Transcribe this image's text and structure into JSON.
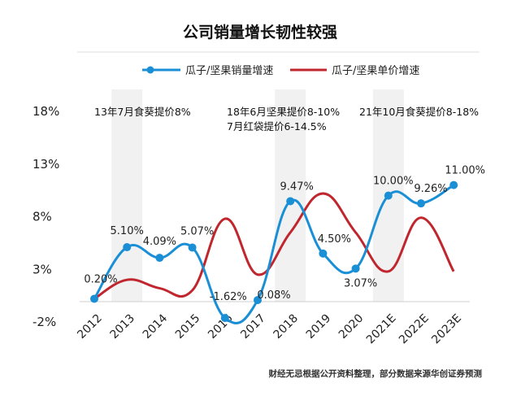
{
  "chart_data": {
    "type": "line",
    "title": "公司销量增长韧性较强",
    "categories": [
      "2012",
      "2013",
      "2014",
      "2015",
      "2016",
      "2017",
      "2018",
      "2019",
      "2020",
      "2021E",
      "2022E",
      "2023E"
    ],
    "yticks": [
      "18%",
      "13%",
      "8%",
      "3%",
      "-2%"
    ],
    "ylim": [
      -2,
      18
    ],
    "legend_position": "top-center",
    "series": [
      {
        "name": "瓜子/坚果销量增速",
        "color": "#1a8fd6",
        "values": [
          0.2,
          5.1,
          4.09,
          5.07,
          -1.62,
          0.08,
          9.47,
          4.5,
          3.07,
          10.0,
          9.26,
          11.0
        ],
        "labels": [
          "0.20%",
          "5.10%",
          "4.09%",
          "5.07%",
          "-1.62%",
          "0.08%",
          "9.47%",
          "4.50%",
          "3.07%",
          "10.00%",
          "9.26%",
          "11.00%"
        ]
      },
      {
        "name": "瓜子/坚果单价增速",
        "color": "#c0262d",
        "values": [
          0.2,
          2.0,
          1.2,
          1.0,
          7.8,
          2.5,
          6.5,
          10.2,
          6.5,
          2.8,
          7.9,
          2.8
        ]
      }
    ],
    "annotations": [
      "13年7月食葵提价8%",
      "18年6月坚果提价8-10%",
      "7月红袋提价6-14.5%",
      "21年10月食葵提价8-18%"
    ],
    "shaded_categories": [
      "2013",
      "2018",
      "2021E"
    ],
    "grid": false,
    "source": "财经无忌根据公开资料整理，部分数据来源华创证券预测"
  }
}
